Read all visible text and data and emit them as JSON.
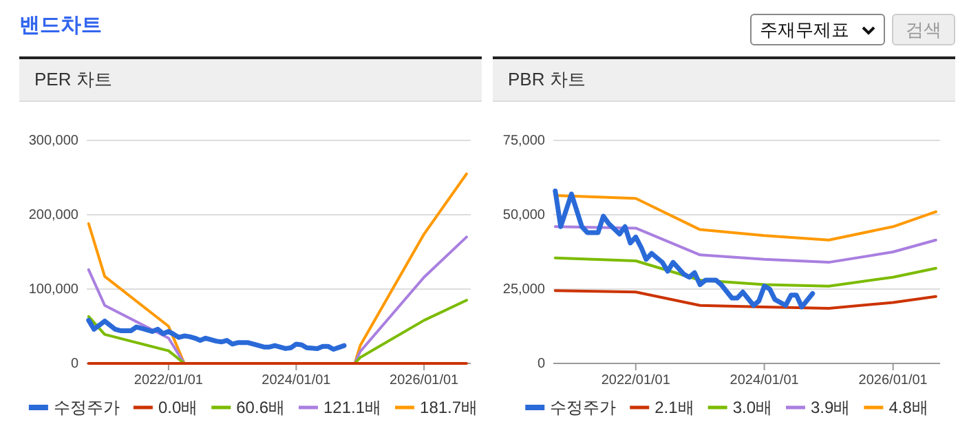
{
  "chart_data": [
    {
      "type": "line",
      "title": "PER 차트",
      "annotations": [
        "밴드차트"
      ],
      "xlim": [
        "2020-09-20",
        "2026-09-25"
      ],
      "xticks": [
        {
          "value": "2022-01-01",
          "label": "2022/01/01"
        },
        {
          "value": "2024-01-01",
          "label": "2024/01/01"
        },
        {
          "value": "2026-01-01",
          "label": "2026/01/01"
        }
      ],
      "ylim": [
        0,
        300000
      ],
      "yticks": [
        0,
        {
          "value": 100000,
          "label": "100,000"
        },
        {
          "value": 200000,
          "label": "200,000"
        },
        {
          "value": 300000,
          "label": "300,000"
        }
      ],
      "grid": "y",
      "legend": "bottom",
      "marker": "none",
      "series": [
        {
          "name": "수정주가",
          "type": "line",
          "color": "#2a6ad8",
          "x": [
            "2020-10",
            "2020-11",
            "2021-01",
            "2021-03",
            "2021-04",
            "2021-06",
            "2021-07",
            "2021-08",
            "2021-10",
            "2021-11",
            "2021-12",
            "2022-01",
            "2022-02",
            "2022-03",
            "2022-04",
            "2022-05",
            "2022-06",
            "2022-07",
            "2022-08",
            "2022-10",
            "2022-11",
            "2022-12",
            "2023-01",
            "2023-02",
            "2023-04",
            "2023-05",
            "2023-07",
            "2023-08",
            "2023-09",
            "2023-11",
            "2023-12",
            "2024-01",
            "2024-02",
            "2024-03",
            "2024-05",
            "2024-06",
            "2024-07",
            "2024-08",
            "2024-10"
          ],
          "values": [
            58000,
            46000,
            57000,
            46000,
            44000,
            44000,
            49000,
            47000,
            43000,
            46000,
            40000,
            43000,
            39000,
            35000,
            37000,
            36000,
            34000,
            31000,
            34000,
            30000,
            29000,
            31000,
            26000,
            28000,
            28000,
            26000,
            22000,
            22000,
            24000,
            20000,
            21000,
            26000,
            25000,
            21000,
            20000,
            23000,
            23000,
            19000,
            24000
          ]
        },
        {
          "name": "0.0배",
          "type": "line",
          "color": "#cc3300",
          "x": [
            "2020-10",
            "2021-01",
            "2022-01",
            "2022-04",
            "2024-12",
            "2025-01",
            "2026-01",
            "2026-09"
          ],
          "values": [
            0,
            0,
            0,
            0,
            0,
            0,
            0,
            0
          ]
        },
        {
          "name": "60.6배",
          "type": "line",
          "color": "#7cbb00",
          "x": [
            "2020-10",
            "2021-01",
            "2022-01",
            "2022-04",
            "2024-12",
            "2025-01",
            "2026-01",
            "2026-09"
          ],
          "values": [
            63000,
            39000,
            17000,
            0,
            0,
            8000,
            58000,
            85000
          ]
        },
        {
          "name": "121.1배",
          "type": "line",
          "color": "#a97fe0",
          "x": [
            "2020-10",
            "2021-01",
            "2022-01",
            "2022-04",
            "2024-12",
            "2025-01",
            "2026-01",
            "2026-09"
          ],
          "values": [
            126000,
            78000,
            34000,
            0,
            0,
            16000,
            116000,
            170000
          ]
        },
        {
          "name": "181.7배",
          "type": "line",
          "color": "#ff9900",
          "x": [
            "2020-10",
            "2021-01",
            "2022-01",
            "2022-04",
            "2024-12",
            "2025-01",
            "2026-01",
            "2026-09"
          ],
          "values": [
            188000,
            117000,
            50000,
            0,
            0,
            24000,
            174000,
            255000
          ]
        }
      ]
    },
    {
      "type": "line",
      "title": "PBR 차트",
      "annotations": [
        "주재무제표",
        "검색"
      ],
      "xlim": [
        "2020-09-20",
        "2026-09-25"
      ],
      "xticks": [
        {
          "value": "2022-01-01",
          "label": "2022/01/01"
        },
        {
          "value": "2024-01-01",
          "label": "2024/01/01"
        },
        {
          "value": "2026-01-01",
          "label": "2026/01/01"
        }
      ],
      "ylim": [
        0,
        75000
      ],
      "yticks": [
        0,
        {
          "value": 25000,
          "label": "25,000"
        },
        {
          "value": 50000,
          "label": "50,000"
        },
        {
          "value": 75000,
          "label": "75,000"
        }
      ],
      "grid": "y",
      "legend": "bottom",
      "marker": "none",
      "series": [
        {
          "name": "수정주가",
          "type": "line",
          "color": "#2a6ad8",
          "x": [
            "2020-10",
            "2020-11",
            "2021-01",
            "2021-03",
            "2021-04",
            "2021-06",
            "2021-07",
            "2021-08",
            "2021-10",
            "2021-11",
            "2021-12",
            "2022-01",
            "2022-02",
            "2022-03",
            "2022-04",
            "2022-05",
            "2022-06",
            "2022-07",
            "2022-08",
            "2022-10",
            "2022-11",
            "2022-12",
            "2023-01",
            "2023-02",
            "2023-04",
            "2023-05",
            "2023-07",
            "2023-08",
            "2023-09",
            "2023-11",
            "2023-12",
            "2024-01",
            "2024-02",
            "2024-03",
            "2024-05",
            "2024-06",
            "2024-07",
            "2024-08",
            "2024-10"
          ],
          "values": [
            58000,
            46000,
            57000,
            46000,
            44000,
            44000,
            49500,
            47000,
            43500,
            46000,
            40500,
            42500,
            39000,
            35000,
            37000,
            35500,
            34000,
            31000,
            34000,
            30000,
            29000,
            30500,
            26500,
            28000,
            28000,
            26500,
            22000,
            22000,
            24000,
            19500,
            21000,
            26000,
            25000,
            21500,
            19500,
            23000,
            23000,
            19000,
            23500
          ]
        },
        {
          "name": "2.1배",
          "type": "line",
          "color": "#cc3300",
          "x": [
            "2020-10",
            "2022-01",
            "2023-01",
            "2024-01",
            "2025-01",
            "2026-01",
            "2026-09"
          ],
          "values": [
            24500,
            24000,
            19500,
            19000,
            18500,
            20500,
            22500
          ]
        },
        {
          "name": "3.0배",
          "type": "line",
          "color": "#7cbb00",
          "x": [
            "2020-10",
            "2022-01",
            "2023-01",
            "2024-01",
            "2025-01",
            "2026-01",
            "2026-09"
          ],
          "values": [
            35500,
            34500,
            28000,
            26500,
            26000,
            29000,
            32000
          ]
        },
        {
          "name": "3.9배",
          "type": "line",
          "color": "#a97fe0",
          "x": [
            "2020-10",
            "2022-01",
            "2023-01",
            "2024-01",
            "2025-01",
            "2026-01",
            "2026-09"
          ],
          "values": [
            46000,
            45500,
            36500,
            35000,
            34000,
            37500,
            41500
          ]
        },
        {
          "name": "4.8배",
          "type": "line",
          "color": "#ff9900",
          "x": [
            "2020-10",
            "2022-01",
            "2023-01",
            "2024-01",
            "2025-01",
            "2026-01",
            "2026-09"
          ],
          "values": [
            56500,
            55500,
            45000,
            43000,
            41500,
            46000,
            51000
          ]
        }
      ]
    }
  ]
}
